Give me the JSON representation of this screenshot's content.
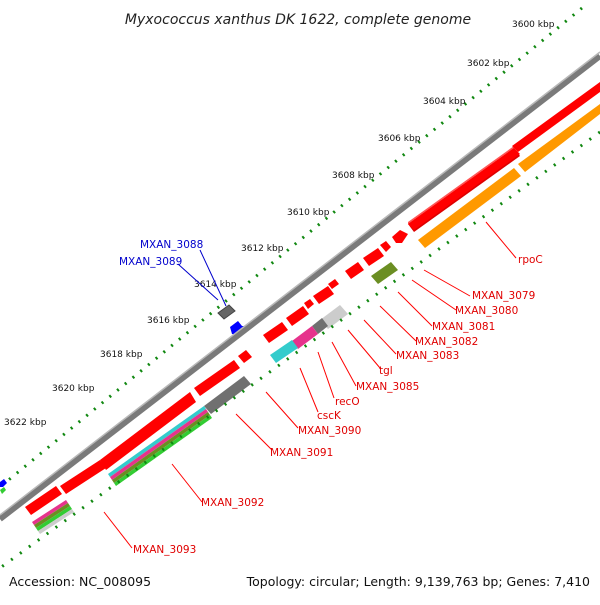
{
  "title": "Myxococcus xanthus DK 1622, complete genome",
  "footer": {
    "accession": "Accession: NC_008095",
    "summary": "Topology: circular; Length: 9,139,763 bp; Genes: 7,410"
  },
  "colors": {
    "backbone": "#808080",
    "gene_red": "#ff0000",
    "gene_blue": "#0000ff",
    "rna_gray": "#707070",
    "label_red": "#e00000",
    "label_blue": "#0000cc",
    "tick_green": "#118811",
    "cds_orange": "#ff9900",
    "cds_olive": "#6b8e23",
    "cds_cyan": "#33cccc",
    "cds_magenta": "#e6338c"
  },
  "ticks": [
    "3600 kbp",
    "3602 kbp",
    "3604 kbp",
    "3606 kbp",
    "3608 kbp",
    "3610 kbp",
    "3612 kbp",
    "3614 kbp",
    "3616 kbp",
    "3618 kbp",
    "3620 kbp",
    "3622 kbp"
  ],
  "gene_labels": [
    "rpoC",
    "MXAN_3079",
    "MXAN_3080",
    "MXAN_3081",
    "MXAN_3082",
    "MXAN_3083",
    "tgl",
    "MXAN_3085",
    "recO",
    "cscK",
    "MXAN_3090",
    "MXAN_3091",
    "MXAN_3092",
    "MXAN_3093"
  ],
  "blue_labels": [
    "MXAN_3088",
    "MXAN_3089"
  ]
}
